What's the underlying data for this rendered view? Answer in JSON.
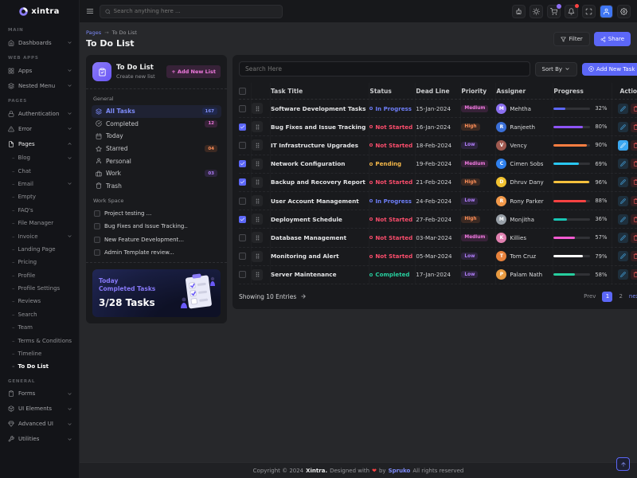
{
  "brand": {
    "name": "xintra"
  },
  "navbar": {
    "search_placeholder": "Search anything here ...",
    "icons": [
      {
        "name": "ai-assistant",
        "icon": "bot"
      },
      {
        "name": "theme-toggle",
        "icon": "sun"
      },
      {
        "name": "cart",
        "icon": "cart",
        "badge": "purple"
      },
      {
        "name": "notifications",
        "icon": "bell",
        "badge": "red"
      },
      {
        "name": "fullscreen",
        "icon": "expand"
      },
      {
        "name": "profile",
        "icon": "person",
        "avatar": true
      },
      {
        "name": "settings",
        "icon": "gear"
      }
    ]
  },
  "breadcrumb": {
    "parent": "Pages",
    "separator": "→",
    "current": "To Do List"
  },
  "page": {
    "title": "To Do List",
    "filter_label": "Filter",
    "share_label": "Share"
  },
  "sidebar": {
    "sections": [
      {
        "label": "Main",
        "items": [
          {
            "label": "Dashboards",
            "icon": "home",
            "chevron": "down"
          }
        ]
      },
      {
        "label": "Web Apps",
        "items": [
          {
            "label": "Apps",
            "icon": "grid",
            "chevron": "down"
          },
          {
            "label": "Nested Menu",
            "icon": "layers",
            "chevron": "down"
          }
        ]
      },
      {
        "label": "Pages",
        "items": [
          {
            "label": "Authentication",
            "icon": "lock",
            "chevron": "down"
          },
          {
            "label": "Error",
            "icon": "alert",
            "chevron": "down"
          },
          {
            "label": "Pages",
            "icon": "file",
            "chevron": "up",
            "expanded": true,
            "children": [
              {
                "label": "Blog",
                "chevron": "down"
              },
              {
                "label": "Chat"
              },
              {
                "label": "Email",
                "chevron": "down"
              },
              {
                "label": "Empty"
              },
              {
                "label": "FAQ's"
              },
              {
                "label": "File Manager"
              },
              {
                "label": "Invoice",
                "chevron": "down"
              },
              {
                "label": "Landing Page"
              },
              {
                "label": "Pricing"
              },
              {
                "label": "Profile"
              },
              {
                "label": "Profile Settings"
              },
              {
                "label": "Reviews"
              },
              {
                "label": "Search"
              },
              {
                "label": "Team"
              },
              {
                "label": "Terms & Conditions"
              },
              {
                "label": "Timeline"
              },
              {
                "label": "To Do List",
                "active": true
              }
            ]
          }
        ]
      },
      {
        "label": "General",
        "items": [
          {
            "label": "Forms",
            "icon": "clipboard",
            "chevron": "down"
          },
          {
            "label": "UI Elements",
            "icon": "box",
            "chevron": "down"
          },
          {
            "label": "Advanced UI",
            "icon": "gem",
            "chevron": "down"
          },
          {
            "label": "Utilities",
            "icon": "wrench",
            "chevron": "down"
          }
        ]
      }
    ]
  },
  "todo_panel": {
    "title": "To Do List",
    "subtitle": "Create new list",
    "add_list_label": "+ Add New List",
    "group_label": "General",
    "items": [
      {
        "label": "All Tasks",
        "icon": "layers",
        "badge": "167",
        "badge_color": "blue",
        "active": true
      },
      {
        "label": "Completed",
        "icon": "check-circle",
        "badge": "12",
        "badge_color": "pink"
      },
      {
        "label": "Today",
        "icon": "calendar"
      },
      {
        "label": "Starred",
        "icon": "star",
        "badge": "04",
        "badge_color": "orange"
      },
      {
        "label": "Personal",
        "icon": "user"
      },
      {
        "label": "Work",
        "icon": "briefcase",
        "badge": "03",
        "badge_color": "purple"
      },
      {
        "label": "Trash",
        "icon": "trash"
      }
    ],
    "workspace_label": "Work Space",
    "workspace_items": [
      {
        "label": "Project testing ..."
      },
      {
        "label": "Bug Fixes and Issue Tracking.."
      },
      {
        "label": "New Feature Development..."
      },
      {
        "label": "Admin Template review..."
      }
    ],
    "summary": {
      "title": "Today Completed Tasks",
      "count": "3/28 Tasks"
    }
  },
  "tasks": {
    "search_placeholder": "Search Here",
    "sort_label": "Sort By",
    "add_task_label": "Add New Task",
    "columns": [
      "Task Title",
      "Status",
      "Dead Line",
      "Priority",
      "Assigner",
      "Progress",
      "Action"
    ],
    "rows": [
      {
        "title": "Software Development Tasks",
        "status": "In Progress",
        "deadline": "15-Jan-2024",
        "priority": "Medium",
        "assigner": "Mehtha",
        "avatar_color": "#8b6ff0",
        "progress": "32%",
        "progress_color": "#5c67f7",
        "checked": false,
        "edit_active": false
      },
      {
        "title": "Bug Fixes and Issue Tracking",
        "status": "Not Started",
        "deadline": "16-Jan-2024",
        "priority": "High",
        "assigner": "Ranjeeth",
        "avatar_color": "#3a6fd8",
        "progress": "80%",
        "progress_color": "#8e54f7",
        "checked": true,
        "edit_active": false
      },
      {
        "title": "IT Infrastructure Upgrades",
        "status": "Not Started",
        "deadline": "18-Feb-2024",
        "priority": "Low",
        "assigner": "Vency",
        "avatar_color": "#a05a50",
        "progress": "90%",
        "progress_color": "#fd7e41",
        "checked": false,
        "edit_active": true
      },
      {
        "title": "Network Configuration",
        "status": "Pending",
        "deadline": "19-Feb-2024",
        "priority": "Medium",
        "assigner": "Cimen Sobs",
        "avatar_color": "#2f80ed",
        "progress": "69%",
        "progress_color": "#29c7f2",
        "checked": true,
        "edit_active": false
      },
      {
        "title": "Backup and Recovery Report",
        "status": "Not Started",
        "deadline": "21-Feb-2024",
        "priority": "High",
        "assigner": "Dhruv Dany",
        "avatar_color": "#f2c230",
        "progress": "96%",
        "progress_color": "#f5c13d",
        "checked": true,
        "edit_active": false
      },
      {
        "title": "User Account Management",
        "status": "In Progress",
        "deadline": "24-Feb-2024",
        "priority": "Low",
        "assigner": "Rony Parker",
        "avatar_color": "#f2994a",
        "progress": "88%",
        "progress_color": "#fb4242",
        "checked": false,
        "edit_active": false
      },
      {
        "title": "Deployment Schedule",
        "status": "Not Started",
        "deadline": "27-Feb-2024",
        "priority": "High",
        "assigner": "Monjitha",
        "avatar_color": "#98a0a8",
        "progress": "36%",
        "progress_color": "#18c5b4",
        "checked": true,
        "edit_active": false
      },
      {
        "title": "Database Management",
        "status": "Not Started",
        "deadline": "03-Mar-2024",
        "priority": "Medium",
        "assigner": "Killies",
        "avatar_color": "#e080b0",
        "progress": "57%",
        "progress_color": "#f45bd1",
        "checked": false,
        "edit_active": false
      },
      {
        "title": "Monitoring and Alert",
        "status": "Not Started",
        "deadline": "05-Mar-2024",
        "priority": "Low",
        "assigner": "Tom Cruz",
        "avatar_color": "#e8823c",
        "progress": "79%",
        "progress_color": "#ffffff",
        "checked": false,
        "edit_active": false
      },
      {
        "title": "Server Maintenance",
        "status": "Completed",
        "deadline": "17-Jan-2024",
        "priority": "Low",
        "assigner": "Palam Nath",
        "avatar_color": "#e89a40",
        "progress": "58%",
        "progress_color": "#27ce9e",
        "checked": false,
        "edit_active": false
      }
    ],
    "footer": {
      "showing": "Showing 10 Entries",
      "prev": "Prev",
      "pages": [
        "1",
        "2"
      ],
      "active_page": "1",
      "next": "next"
    }
  },
  "footer": {
    "prefix": "Copyright © 2024",
    "brand": "Xintra.",
    "designed": "Designed with",
    "heart": "❤",
    "by": "by",
    "vendor": "Spruko",
    "rights": "All rights reserved"
  },
  "colors": {
    "primary": "#5c67f7",
    "secondary_pink": "#e354d4",
    "status_colors": {
      "In Progress": "#6e7ef8",
      "Not Started": "#fb4d6c",
      "Pending": "#f5b849",
      "Completed": "#27ce9e"
    },
    "priority_colors": {
      "Medium": {
        "bg": "rgba(230,83,213,0.15)",
        "fg": "#ef79de"
      },
      "High": {
        "bg": "rgba(253,126,65,0.15)",
        "fg": "#fd8e58"
      },
      "Low": {
        "bg": "rgba(158,92,247,0.15)",
        "fg": "#b07ef9"
      }
    },
    "badge_colors": {
      "blue": {
        "bg": "#20284d",
        "fg": "#8391fa"
      },
      "pink": {
        "bg": "rgba(230,83,213,0.15)",
        "fg": "#ef79de"
      },
      "orange": {
        "bg": "rgba(253,126,65,0.15)",
        "fg": "#fd8e58"
      },
      "purple": {
        "bg": "rgba(158,92,247,0.15)",
        "fg": "#b07ef9"
      }
    }
  }
}
